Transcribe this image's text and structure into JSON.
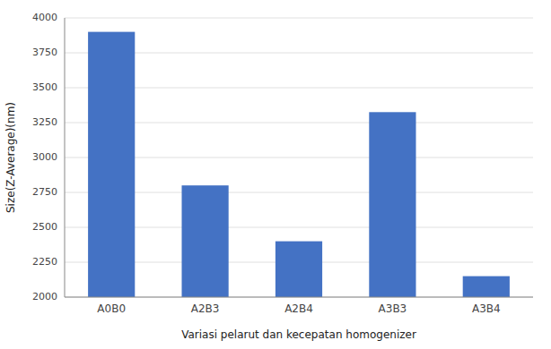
{
  "chart_data": {
    "type": "bar",
    "categories": [
      "A0B0",
      "A2B3",
      "A2B4",
      "A3B3",
      "A3B4"
    ],
    "values": [
      3900,
      2800,
      2400,
      3325,
      2150
    ],
    "color": "#4472C4",
    "xlabel": "Variasi pelarut dan kecepatan homogenizer",
    "ylabel": "Size(Z-Average)(nm)",
    "ylim": [
      2000,
      4000
    ],
    "yticks": [
      2000,
      2250,
      2500,
      2750,
      3000,
      3250,
      3500,
      3750,
      4000
    ],
    "grid": true
  }
}
